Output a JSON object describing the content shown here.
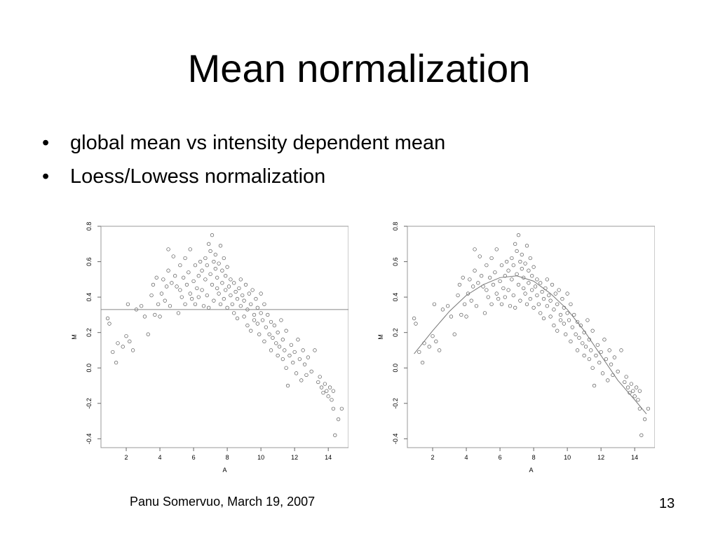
{
  "slide": {
    "title": "Mean normalization",
    "bullets": [
      "global mean vs intensity dependent mean",
      "Loess/Lowess normalization"
    ],
    "footer_author": "Panu Somervuo, March 19, 2007",
    "page_number": "13"
  },
  "chart_data": [
    {
      "type": "scatter",
      "xlabel": "A",
      "ylabel": "M",
      "xlim": [
        0.5,
        15.2
      ],
      "ylim": [
        -0.45,
        0.8
      ],
      "xticks": [
        2,
        4,
        6,
        8,
        10,
        12,
        14
      ],
      "yticks": [
        -0.4,
        -0.2,
        0.0,
        0.2,
        0.4,
        0.6,
        0.8
      ],
      "ytick_labels": [
        "-0.4",
        "-0.2",
        "0.0",
        "0.2",
        "0.4",
        "0.6",
        "0.8"
      ],
      "grid": false,
      "hline": 0.33,
      "points": [
        [
          0.9,
          0.28
        ],
        [
          1.0,
          0.25
        ],
        [
          1.2,
          0.09
        ],
        [
          1.4,
          0.03
        ],
        [
          1.5,
          0.14
        ],
        [
          1.8,
          0.12
        ],
        [
          2.0,
          0.18
        ],
        [
          2.1,
          0.36
        ],
        [
          2.2,
          0.15
        ],
        [
          2.4,
          0.1
        ],
        [
          2.6,
          0.33
        ],
        [
          2.9,
          0.35
        ],
        [
          3.1,
          0.29
        ],
        [
          3.3,
          0.19
        ],
        [
          3.5,
          0.41
        ],
        [
          3.6,
          0.47
        ],
        [
          3.7,
          0.3
        ],
        [
          3.8,
          0.51
        ],
        [
          3.9,
          0.36
        ],
        [
          4.0,
          0.29
        ],
        [
          4.1,
          0.42
        ],
        [
          4.2,
          0.5
        ],
        [
          4.3,
          0.38
        ],
        [
          4.4,
          0.46
        ],
        [
          4.5,
          0.67
        ],
        [
          4.5,
          0.55
        ],
        [
          4.6,
          0.35
        ],
        [
          4.7,
          0.48
        ],
        [
          4.8,
          0.63
        ],
        [
          4.9,
          0.52
        ],
        [
          5.0,
          0.46
        ],
        [
          5.1,
          0.31
        ],
        [
          5.2,
          0.58
        ],
        [
          5.2,
          0.44
        ],
        [
          5.3,
          0.4
        ],
        [
          5.4,
          0.51
        ],
        [
          5.5,
          0.62
        ],
        [
          5.5,
          0.36
        ],
        [
          5.6,
          0.47
        ],
        [
          5.7,
          0.54
        ],
        [
          5.8,
          0.67
        ],
        [
          5.8,
          0.42
        ],
        [
          5.9,
          0.39
        ],
        [
          6.0,
          0.49
        ],
        [
          6.1,
          0.58
        ],
        [
          6.1,
          0.36
        ],
        [
          6.2,
          0.45
        ],
        [
          6.3,
          0.52
        ],
        [
          6.3,
          0.4
        ],
        [
          6.4,
          0.6
        ],
        [
          6.5,
          0.55
        ],
        [
          6.5,
          0.44
        ],
        [
          6.6,
          0.35
        ],
        [
          6.7,
          0.62
        ],
        [
          6.7,
          0.5
        ],
        [
          6.8,
          0.58
        ],
        [
          6.8,
          0.41
        ],
        [
          6.9,
          0.7
        ],
        [
          6.9,
          0.34
        ],
        [
          7.0,
          0.66
        ],
        [
          7.0,
          0.53
        ],
        [
          7.1,
          0.75
        ],
        [
          7.1,
          0.47
        ],
        [
          7.2,
          0.6
        ],
        [
          7.2,
          0.38
        ],
        [
          7.3,
          0.56
        ],
        [
          7.3,
          0.64
        ],
        [
          7.4,
          0.45
        ],
        [
          7.4,
          0.51
        ],
        [
          7.5,
          0.59
        ],
        [
          7.5,
          0.42
        ],
        [
          7.6,
          0.69
        ],
        [
          7.6,
          0.36
        ],
        [
          7.7,
          0.55
        ],
        [
          7.7,
          0.48
        ],
        [
          7.8,
          0.62
        ],
        [
          7.8,
          0.39
        ],
        [
          7.9,
          0.52
        ],
        [
          7.9,
          0.44
        ],
        [
          8.0,
          0.57
        ],
        [
          8.0,
          0.34
        ],
        [
          8.1,
          0.46
        ],
        [
          8.2,
          0.5
        ],
        [
          8.2,
          0.41
        ],
        [
          8.3,
          0.36
        ],
        [
          8.4,
          0.48
        ],
        [
          8.4,
          0.31
        ],
        [
          8.5,
          0.43
        ],
        [
          8.6,
          0.39
        ],
        [
          8.6,
          0.28
        ],
        [
          8.7,
          0.45
        ],
        [
          8.8,
          0.35
        ],
        [
          8.8,
          0.5
        ],
        [
          8.9,
          0.41
        ],
        [
          9.0,
          0.29
        ],
        [
          9.0,
          0.38
        ],
        [
          9.1,
          0.47
        ],
        [
          9.2,
          0.33
        ],
        [
          9.2,
          0.24
        ],
        [
          9.3,
          0.42
        ],
        [
          9.4,
          0.36
        ],
        [
          9.4,
          0.21
        ],
        [
          9.5,
          0.44
        ],
        [
          9.6,
          0.3
        ],
        [
          9.6,
          0.27
        ],
        [
          9.7,
          0.39
        ],
        [
          9.8,
          0.25
        ],
        [
          9.8,
          0.34
        ],
        [
          9.9,
          0.19
        ],
        [
          10.0,
          0.31
        ],
        [
          10.0,
          0.42
        ],
        [
          10.1,
          0.27
        ],
        [
          10.2,
          0.36
        ],
        [
          10.2,
          0.15
        ],
        [
          10.3,
          0.23
        ],
        [
          10.4,
          0.3
        ],
        [
          10.5,
          0.19
        ],
        [
          10.6,
          0.1
        ],
        [
          10.6,
          0.26
        ],
        [
          10.7,
          0.17
        ],
        [
          10.8,
          0.24
        ],
        [
          10.9,
          0.14
        ],
        [
          11.0,
          0.07
        ],
        [
          11.0,
          0.2
        ],
        [
          11.1,
          0.12
        ],
        [
          11.2,
          0.27
        ],
        [
          11.3,
          0.05
        ],
        [
          11.3,
          0.16
        ],
        [
          11.4,
          0.1
        ],
        [
          11.5,
          0.0
        ],
        [
          11.5,
          0.21
        ],
        [
          11.6,
          -0.1
        ],
        [
          11.7,
          0.07
        ],
        [
          11.8,
          0.13
        ],
        [
          11.9,
          0.03
        ],
        [
          12.0,
          0.09
        ],
        [
          12.1,
          -0.03
        ],
        [
          12.2,
          0.16
        ],
        [
          12.3,
          0.05
        ],
        [
          12.4,
          -0.07
        ],
        [
          12.5,
          0.1
        ],
        [
          12.6,
          0.02
        ],
        [
          12.7,
          -0.04
        ],
        [
          12.8,
          0.06
        ],
        [
          13.0,
          -0.02
        ],
        [
          13.2,
          0.1
        ],
        [
          13.4,
          -0.08
        ],
        [
          13.5,
          -0.05
        ],
        [
          13.6,
          -0.11
        ],
        [
          13.7,
          -0.14
        ],
        [
          13.8,
          -0.09
        ],
        [
          13.9,
          -0.13
        ],
        [
          14.0,
          -0.16
        ],
        [
          14.1,
          -0.11
        ],
        [
          14.2,
          -0.18
        ],
        [
          14.3,
          -0.13
        ],
        [
          14.3,
          -0.23
        ],
        [
          14.4,
          -0.38
        ],
        [
          14.6,
          -0.29
        ],
        [
          14.8,
          -0.23
        ]
      ]
    },
    {
      "type": "scatter",
      "xlabel": "A",
      "ylabel": "M",
      "xlim": [
        0.5,
        15.2
      ],
      "ylim": [
        -0.45,
        0.8
      ],
      "xticks": [
        2,
        4,
        6,
        8,
        10,
        12,
        14
      ],
      "yticks": [
        -0.4,
        -0.2,
        0.0,
        0.2,
        0.4,
        0.6,
        0.8
      ],
      "ytick_labels": [
        "-0.4",
        "-0.2",
        "0.0",
        "0.2",
        "0.4",
        "0.6",
        "0.8"
      ],
      "grid": false,
      "curve_points": [
        [
          0.9,
          0.08
        ],
        [
          2.0,
          0.21
        ],
        [
          3.0,
          0.32
        ],
        [
          4.0,
          0.41
        ],
        [
          5.0,
          0.47
        ],
        [
          6.0,
          0.51
        ],
        [
          7.0,
          0.52
        ],
        [
          8.0,
          0.49
        ],
        [
          9.0,
          0.42
        ],
        [
          10.0,
          0.33
        ],
        [
          11.0,
          0.21
        ],
        [
          12.0,
          0.07
        ],
        [
          13.0,
          -0.07
        ],
        [
          14.0,
          -0.18
        ],
        [
          14.7,
          -0.26
        ]
      ],
      "points": [
        [
          0.9,
          0.28
        ],
        [
          1.0,
          0.25
        ],
        [
          1.2,
          0.09
        ],
        [
          1.4,
          0.03
        ],
        [
          1.5,
          0.14
        ],
        [
          1.8,
          0.12
        ],
        [
          2.0,
          0.18
        ],
        [
          2.1,
          0.36
        ],
        [
          2.2,
          0.15
        ],
        [
          2.4,
          0.1
        ],
        [
          2.6,
          0.33
        ],
        [
          2.9,
          0.35
        ],
        [
          3.1,
          0.29
        ],
        [
          3.3,
          0.19
        ],
        [
          3.5,
          0.41
        ],
        [
          3.6,
          0.47
        ],
        [
          3.7,
          0.3
        ],
        [
          3.8,
          0.51
        ],
        [
          3.9,
          0.36
        ],
        [
          4.0,
          0.29
        ],
        [
          4.1,
          0.42
        ],
        [
          4.2,
          0.5
        ],
        [
          4.3,
          0.38
        ],
        [
          4.4,
          0.46
        ],
        [
          4.5,
          0.67
        ],
        [
          4.5,
          0.55
        ],
        [
          4.6,
          0.35
        ],
        [
          4.7,
          0.48
        ],
        [
          4.8,
          0.63
        ],
        [
          4.9,
          0.52
        ],
        [
          5.0,
          0.46
        ],
        [
          5.1,
          0.31
        ],
        [
          5.2,
          0.58
        ],
        [
          5.2,
          0.44
        ],
        [
          5.3,
          0.4
        ],
        [
          5.4,
          0.51
        ],
        [
          5.5,
          0.62
        ],
        [
          5.5,
          0.36
        ],
        [
          5.6,
          0.47
        ],
        [
          5.7,
          0.54
        ],
        [
          5.8,
          0.67
        ],
        [
          5.8,
          0.42
        ],
        [
          5.9,
          0.39
        ],
        [
          6.0,
          0.49
        ],
        [
          6.1,
          0.58
        ],
        [
          6.1,
          0.36
        ],
        [
          6.2,
          0.45
        ],
        [
          6.3,
          0.52
        ],
        [
          6.3,
          0.4
        ],
        [
          6.4,
          0.6
        ],
        [
          6.5,
          0.55
        ],
        [
          6.5,
          0.44
        ],
        [
          6.6,
          0.35
        ],
        [
          6.7,
          0.62
        ],
        [
          6.7,
          0.5
        ],
        [
          6.8,
          0.58
        ],
        [
          6.8,
          0.41
        ],
        [
          6.9,
          0.7
        ],
        [
          6.9,
          0.34
        ],
        [
          7.0,
          0.66
        ],
        [
          7.0,
          0.53
        ],
        [
          7.1,
          0.75
        ],
        [
          7.1,
          0.47
        ],
        [
          7.2,
          0.6
        ],
        [
          7.2,
          0.38
        ],
        [
          7.3,
          0.56
        ],
        [
          7.3,
          0.64
        ],
        [
          7.4,
          0.45
        ],
        [
          7.4,
          0.51
        ],
        [
          7.5,
          0.59
        ],
        [
          7.5,
          0.42
        ],
        [
          7.6,
          0.69
        ],
        [
          7.6,
          0.36
        ],
        [
          7.7,
          0.55
        ],
        [
          7.7,
          0.48
        ],
        [
          7.8,
          0.62
        ],
        [
          7.8,
          0.39
        ],
        [
          7.9,
          0.52
        ],
        [
          7.9,
          0.44
        ],
        [
          8.0,
          0.57
        ],
        [
          8.0,
          0.34
        ],
        [
          8.1,
          0.46
        ],
        [
          8.2,
          0.5
        ],
        [
          8.2,
          0.41
        ],
        [
          8.3,
          0.36
        ],
        [
          8.4,
          0.48
        ],
        [
          8.4,
          0.31
        ],
        [
          8.5,
          0.43
        ],
        [
          8.6,
          0.39
        ],
        [
          8.6,
          0.28
        ],
        [
          8.7,
          0.45
        ],
        [
          8.8,
          0.35
        ],
        [
          8.8,
          0.5
        ],
        [
          8.9,
          0.41
        ],
        [
          9.0,
          0.29
        ],
        [
          9.0,
          0.38
        ],
        [
          9.1,
          0.47
        ],
        [
          9.2,
          0.33
        ],
        [
          9.2,
          0.24
        ],
        [
          9.3,
          0.42
        ],
        [
          9.4,
          0.36
        ],
        [
          9.4,
          0.21
        ],
        [
          9.5,
          0.44
        ],
        [
          9.6,
          0.3
        ],
        [
          9.6,
          0.27
        ],
        [
          9.7,
          0.39
        ],
        [
          9.8,
          0.25
        ],
        [
          9.8,
          0.34
        ],
        [
          9.9,
          0.19
        ],
        [
          10.0,
          0.31
        ],
        [
          10.0,
          0.42
        ],
        [
          10.1,
          0.27
        ],
        [
          10.2,
          0.36
        ],
        [
          10.2,
          0.15
        ],
        [
          10.3,
          0.23
        ],
        [
          10.4,
          0.3
        ],
        [
          10.5,
          0.19
        ],
        [
          10.6,
          0.1
        ],
        [
          10.6,
          0.26
        ],
        [
          10.7,
          0.17
        ],
        [
          10.8,
          0.24
        ],
        [
          10.9,
          0.14
        ],
        [
          11.0,
          0.07
        ],
        [
          11.0,
          0.2
        ],
        [
          11.1,
          0.12
        ],
        [
          11.2,
          0.27
        ],
        [
          11.3,
          0.05
        ],
        [
          11.3,
          0.16
        ],
        [
          11.4,
          0.1
        ],
        [
          11.5,
          0.0
        ],
        [
          11.5,
          0.21
        ],
        [
          11.6,
          -0.1
        ],
        [
          11.7,
          0.07
        ],
        [
          11.8,
          0.13
        ],
        [
          11.9,
          0.03
        ],
        [
          12.0,
          0.09
        ],
        [
          12.1,
          -0.03
        ],
        [
          12.2,
          0.16
        ],
        [
          12.3,
          0.05
        ],
        [
          12.4,
          -0.07
        ],
        [
          12.5,
          0.1
        ],
        [
          12.6,
          0.02
        ],
        [
          12.7,
          -0.04
        ],
        [
          12.8,
          0.06
        ],
        [
          13.0,
          -0.02
        ],
        [
          13.2,
          0.1
        ],
        [
          13.4,
          -0.08
        ],
        [
          13.5,
          -0.05
        ],
        [
          13.6,
          -0.11
        ],
        [
          13.7,
          -0.14
        ],
        [
          13.8,
          -0.09
        ],
        [
          13.9,
          -0.13
        ],
        [
          14.0,
          -0.16
        ],
        [
          14.1,
          -0.11
        ],
        [
          14.2,
          -0.18
        ],
        [
          14.3,
          -0.13
        ],
        [
          14.3,
          -0.23
        ],
        [
          14.4,
          -0.38
        ],
        [
          14.6,
          -0.29
        ],
        [
          14.8,
          -0.23
        ]
      ]
    }
  ]
}
